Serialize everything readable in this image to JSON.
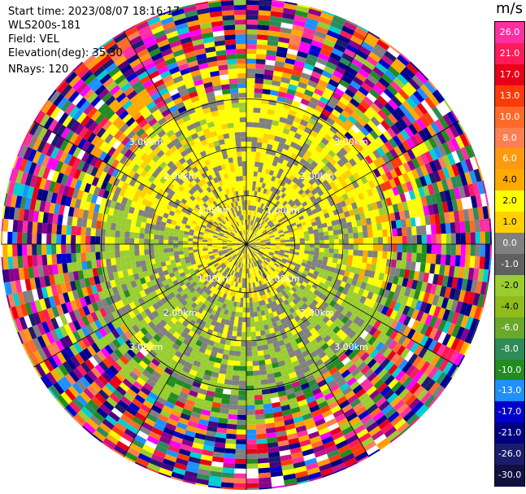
{
  "info": {
    "start_time": "Start time: 2023/08/07 18:16:17",
    "instrument": "WLS200s-181",
    "field": "Field: VEL",
    "elevation": "Elevation(deg): 35.30",
    "nrays": "NRays: 120"
  },
  "colorbar": {
    "units": "m/s",
    "ticks": [
      "26.0",
      "21.0",
      "17.0",
      "13.0",
      "10.0",
      "8.0",
      "6.0",
      "4.0",
      "2.0",
      "1.0",
      "0.0",
      "-1.0",
      "-2.0",
      "-4.0",
      "-6.0",
      "-8.0",
      "-10.0",
      "-13.0",
      "-17.0",
      "-21.0",
      "-26.0",
      "-30.0"
    ],
    "colors": [
      "#ff2fa0",
      "#ff1a5a",
      "#e8001a",
      "#ff3a0a",
      "#ff6a2a",
      "#ff7f50",
      "#ff9a10",
      "#ffaa00",
      "#ffff00",
      "#ffd000",
      "#808080",
      "#606060",
      "#9acd32",
      "#8fbc1a",
      "#6aa82a",
      "#2e8b57",
      "#228b22",
      "#1e90ff",
      "#0000cd",
      "#000080",
      "#1c1c6c",
      "#101040"
    ]
  },
  "chart_data": {
    "type": "heatmap",
    "title": "",
    "units": "m/s",
    "nrays": 120,
    "range_rings_km": [
      1.0,
      2.0,
      3.0
    ],
    "range_labels": [
      "1.00km",
      "2.00km",
      "3.00km"
    ],
    "spoke_angles_deg": [
      0,
      30,
      60,
      90,
      120,
      150,
      180,
      210,
      240,
      270,
      300,
      330
    ],
    "grid": true
  }
}
